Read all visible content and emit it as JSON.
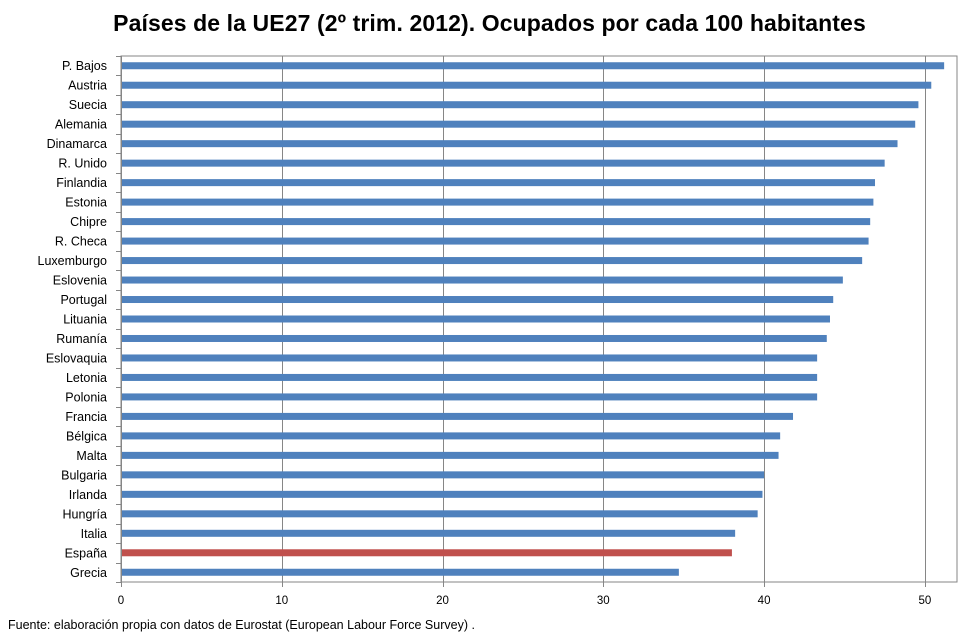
{
  "chart_data": {
    "type": "bar",
    "orientation": "horizontal",
    "title": "Países de la UE27 (2º trim. 2012). Ocupados por cada 100 habitantes",
    "xlabel": "",
    "ylabel": "",
    "xlim": [
      0,
      52
    ],
    "xticks": [
      0,
      10,
      20,
      30,
      40,
      50
    ],
    "grid": true,
    "default_color": "#4F81BD",
    "highlight_color": "#C0504D",
    "highlight_category": "España",
    "categories": [
      "P. Bajos",
      "Austria",
      "Suecia",
      "Alemania",
      "Dinamarca",
      "R. Unido",
      "Finlandia",
      "Estonia",
      "Chipre",
      "R. Checa",
      "Luxemburgo",
      "Eslovenia",
      "Portugal",
      "Lituania",
      "Rumanía",
      "Eslovaquia",
      "Letonia",
      "Polonia",
      "Francia",
      "Bélgica",
      "Malta",
      "Bulgaria",
      "Irlanda",
      "Hungría",
      "Italia",
      "España",
      "Grecia"
    ],
    "values": [
      51.2,
      50.4,
      49.6,
      49.4,
      48.3,
      47.5,
      46.9,
      46.8,
      46.6,
      46.5,
      46.1,
      44.9,
      44.3,
      44.1,
      43.9,
      43.3,
      43.3,
      43.3,
      41.8,
      41.0,
      40.9,
      40.0,
      39.9,
      39.6,
      38.2,
      38.0,
      34.7
    ]
  },
  "source_note": "Fuente: elaboración propia con datos de Eurostat (European Labour Force Survey) ."
}
